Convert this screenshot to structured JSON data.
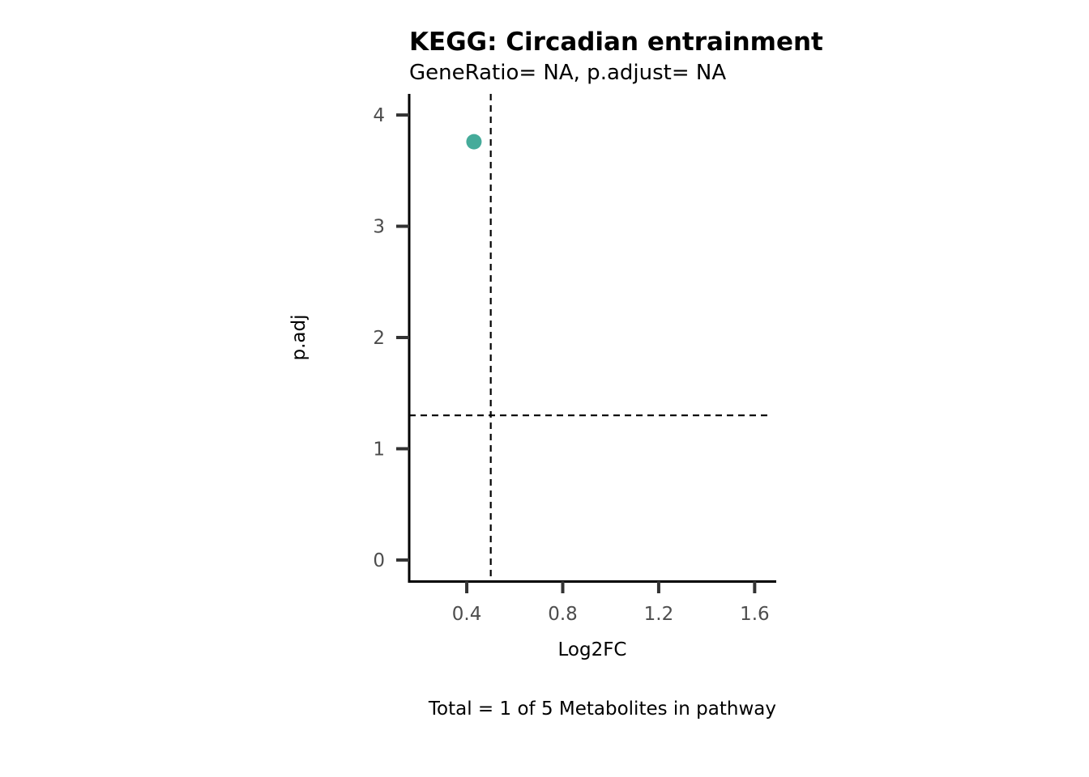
{
  "chart_data": {
    "type": "scatter",
    "title": "KEGG: Circadian entrainment",
    "subtitle": "GeneRatio= NA, p.adjust= NA",
    "xlabel": "Log2FC",
    "ylabel": "p.adj",
    "caption": "Total = 1 of 5 Metabolites in pathway",
    "xlim": [
      0.16,
      1.69
    ],
    "ylim": [
      -0.19,
      4.19
    ],
    "x_ticks": [
      0.4,
      0.8,
      1.2,
      1.6
    ],
    "x_tick_labels": [
      "0.4",
      "0.8",
      "1.2",
      "1.6"
    ],
    "y_ticks": [
      0,
      1,
      2,
      3,
      4
    ],
    "y_tick_labels": [
      "0",
      "1",
      "2",
      "3",
      "4"
    ],
    "vline_x": 0.5,
    "hline_y": 1.3,
    "points": [
      {
        "x": 0.43,
        "y": 3.76
      }
    ],
    "point_color": "#45AB9A",
    "grid": false
  }
}
